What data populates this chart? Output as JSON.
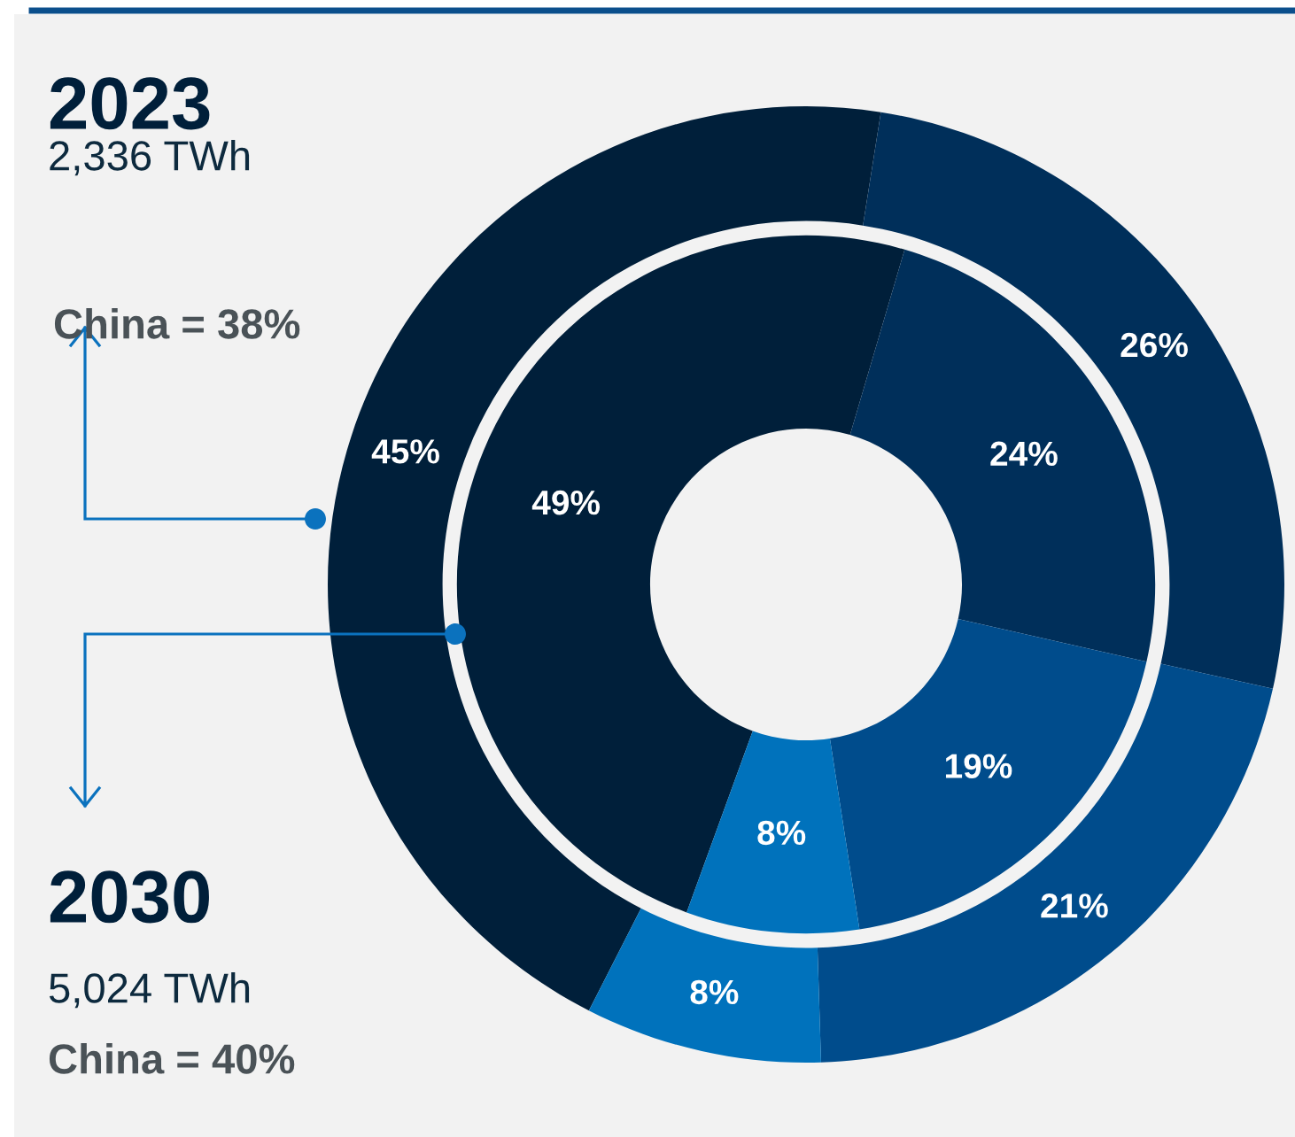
{
  "chart_data": {
    "type": "donut",
    "categories": [
      null,
      null,
      null,
      null
    ],
    "series": [
      {
        "name": "2023",
        "values": [
          45,
          26,
          21,
          8
        ],
        "value_labels": [
          "45%",
          "26%",
          "21%",
          "8%"
        ],
        "colors": [
          "#001f3a",
          "#002f5a",
          "#004c8c",
          "#0072bc"
        ]
      },
      {
        "name": "2030",
        "values": [
          49,
          24,
          19,
          8
        ],
        "value_labels": [
          "49%",
          "24%",
          "19%",
          "8%"
        ],
        "colors": [
          "#001f3a",
          "#002f5a",
          "#004c8c",
          "#0072bc"
        ]
      }
    ],
    "annotations": [
      "2,336 TWh",
      "China = 38%",
      "5,024 TWh",
      "China = 40%"
    ],
    "legend": "left"
  }
}
